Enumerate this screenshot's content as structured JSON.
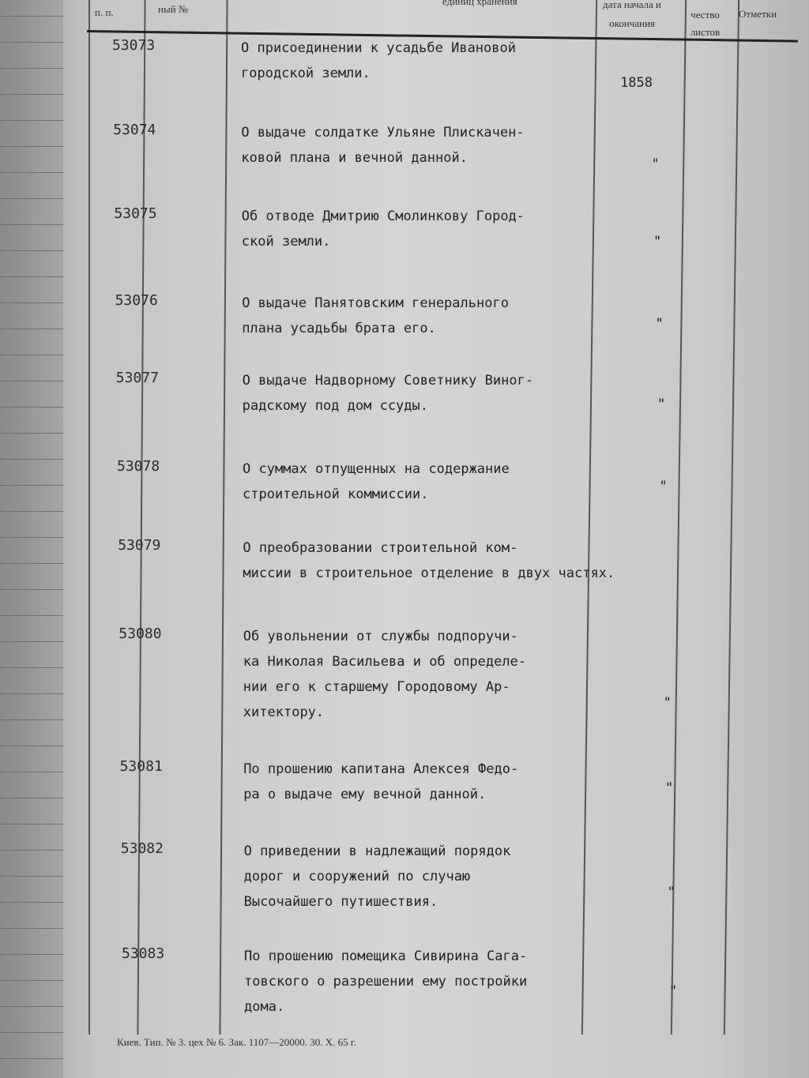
{
  "header": {
    "col1": "п. п.",
    "col2": "ный №",
    "col3": "единиц хранения",
    "col4": "дата начала и окончания",
    "col5": "чество листов",
    "col6": "Отметки"
  },
  "rows": [
    {
      "num": "53073",
      "title": "О присоединении к усадьбе Ивановой\nгородской земли.",
      "date": "1858"
    },
    {
      "num": "53074",
      "title": "О выдаче солдатке Ульяне Плискачен-\nковой плана и вечной данной.",
      "date": "\""
    },
    {
      "num": "53075",
      "title": "Об отводе Дмитрию Смолинкову Город-\nской земли.",
      "date": "\""
    },
    {
      "num": "53076",
      "title": "О выдаче Панятовским генерального\nплана усадьбы брата его.",
      "date": "\""
    },
    {
      "num": "53077",
      "title": "О выдаче Надворному Советнику Виног-\nрадскому под дом ссуды.",
      "date": "\""
    },
    {
      "num": "53078",
      "title": "О суммах отпущенных на содержание\nстроительной коммиссии.",
      "date": "\""
    },
    {
      "num": "53079",
      "title": "О преобразовании строительной ком-\nмиссии в строительное отделение в двух частях.",
      "date": ""
    },
    {
      "num": "53080",
      "title": "Об увольнении от службы подпоручи-\nка Николая Васильева и об определе-\nнии его к старшему Городовому Ар-\nхитектору.",
      "date": "\""
    },
    {
      "num": "53081",
      "title": "По прошению капитана Алексея Федо-\nра о выдаче ему вечной данной.",
      "date": "\""
    },
    {
      "num": "53082",
      "title": "О приведении в надлежащий порядок\nдорог и сооружений по случаю\nВысочайшего путишествия.",
      "date": "\""
    },
    {
      "num": "53083",
      "title": "По прошению помещика Сивирина Сага-\nтовского о разрешении ему постройки\nдома.",
      "date": "\""
    }
  ],
  "footer": "Киев. Тип. № 3. цех № 6. Зак. 1107—20000. 30. X. 65 г."
}
